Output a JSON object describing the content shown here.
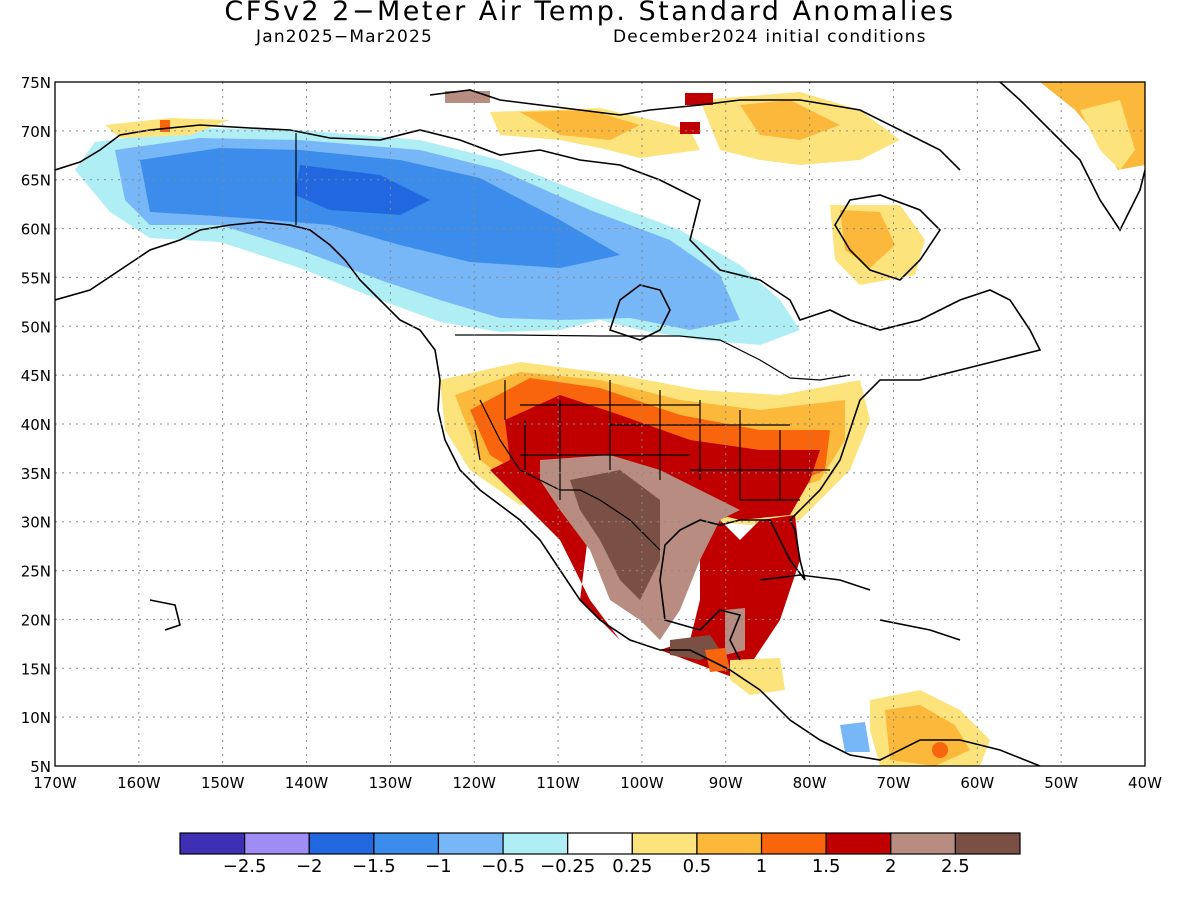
{
  "header": {
    "title": "CFSv2 2−Meter Air Temp. Standard Anomalies",
    "period": "Jan2025−Mar2025",
    "initial_conditions": "December2024 initial conditions"
  },
  "map": {
    "lat_labels": [
      "75N",
      "70N",
      "65N",
      "60N",
      "55N",
      "50N",
      "45N",
      "40N",
      "35N",
      "30N",
      "25N",
      "20N",
      "15N",
      "10N",
      "5N"
    ],
    "lon_labels": [
      "170W",
      "160W",
      "150W",
      "140W",
      "130W",
      "120W",
      "110W",
      "100W",
      "90W",
      "80W",
      "70W",
      "60W",
      "50W",
      "40W"
    ],
    "lon_range": [
      -170,
      -40
    ],
    "lat_range": [
      5,
      75
    ],
    "gridlines": "dotted"
  },
  "colorbar": {
    "colors": [
      "#3e2fb5",
      "#a08cf5",
      "#2167e0",
      "#3c8cec",
      "#78b7f7",
      "#b0eef6",
      "#ffffff",
      "#fde37c",
      "#fbb83a",
      "#f8650c",
      "#c00000",
      "#b88c80",
      "#7a5044"
    ],
    "labels": [
      "−2.5",
      "−2",
      "−1.5",
      "−1",
      "−0.5",
      "−0.25",
      "0.25",
      "0.5",
      "1",
      "1.5",
      "2",
      "2.5"
    ]
  }
}
